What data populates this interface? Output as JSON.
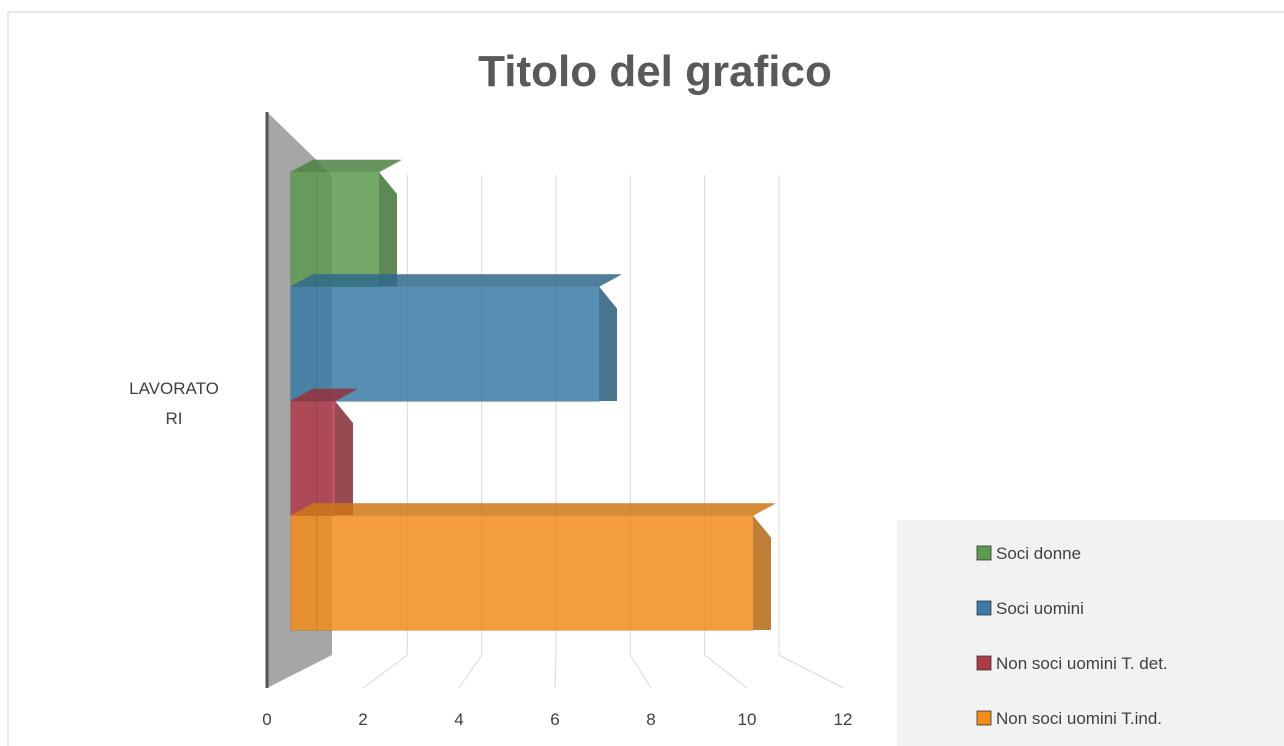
{
  "chart_data": {
    "type": "bar3d",
    "orientation": "horizontal",
    "title": "Titolo del grafico",
    "categories": [
      "LAVORATORI"
    ],
    "series": [
      {
        "name": "Soci donne",
        "color": "#5b9a4f",
        "values": [
          2
        ]
      },
      {
        "name": "Soci uomini",
        "color": "#3a7ca5",
        "values": [
          7
        ]
      },
      {
        "name": "Non soci uomini T. det.",
        "color": "#b03a48",
        "values": [
          1
        ]
      },
      {
        "name": "Non soci uomini T.ind.",
        "color": "#f28c1c",
        "values": [
          10.5
        ]
      }
    ],
    "xlim": [
      0,
      12
    ],
    "xticks": [
      0,
      2,
      4,
      6,
      8,
      10,
      12
    ],
    "grid": true,
    "legend": "right"
  }
}
